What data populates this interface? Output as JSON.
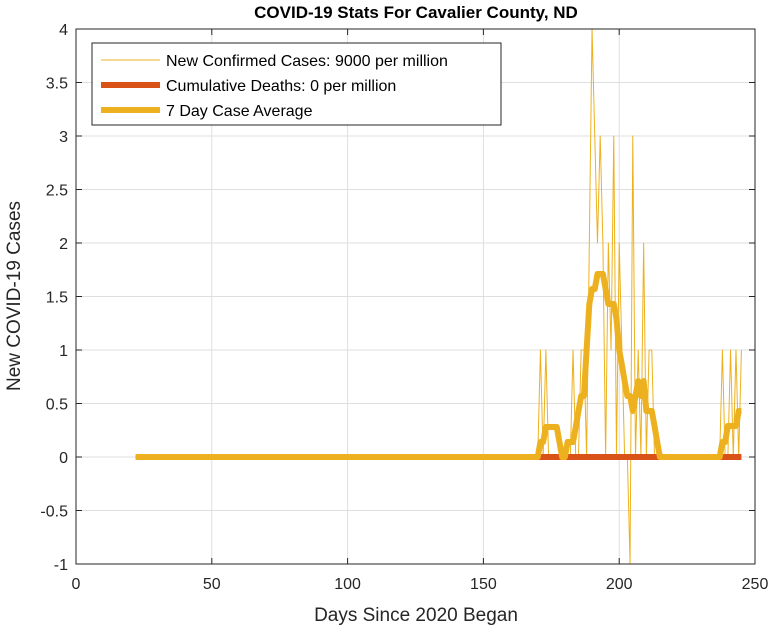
{
  "chart_data": {
    "type": "line",
    "title": "COVID-19 Stats For Cavalier County, ND",
    "xlabel": "Days Since 2020 Began",
    "ylabel": "New COVID-19 Cases",
    "xlim": [
      0,
      250
    ],
    "ylim": [
      -1,
      4
    ],
    "xticks": [
      0,
      50,
      100,
      150,
      200,
      250
    ],
    "yticks": [
      -1,
      -0.5,
      0,
      0.5,
      1,
      1.5,
      2,
      2.5,
      3,
      3.5,
      4
    ],
    "grid": true,
    "legend_position": "top-left",
    "series": [
      {
        "name": "New Confirmed Cases: 9000 per million",
        "color": "#EDB120",
        "line_width": "thin",
        "x": [
          22,
          170,
          171,
          172,
          173,
          174,
          175,
          176,
          177,
          178,
          179,
          180,
          181,
          182,
          183,
          184,
          185,
          186,
          187,
          188,
          189,
          190,
          191,
          192,
          193,
          194,
          195,
          196,
          197,
          198,
          199,
          200,
          201,
          202,
          203,
          204,
          205,
          206,
          207,
          208,
          209,
          210,
          211,
          212,
          213,
          214,
          215,
          216,
          217,
          218,
          219,
          236,
          237,
          238,
          239,
          240,
          241,
          242,
          243,
          244,
          245
        ],
        "y": [
          0,
          0,
          1,
          0,
          1,
          0,
          0,
          0,
          0,
          0,
          0,
          0,
          0,
          0,
          1,
          0,
          0,
          1,
          1,
          0,
          2,
          4,
          3,
          2,
          3,
          2,
          0,
          2,
          1,
          3,
          0,
          2,
          1,
          0,
          0,
          -1,
          3,
          0,
          1,
          0,
          2,
          0,
          1,
          1,
          0,
          0,
          0,
          0,
          0,
          0,
          0,
          0,
          0,
          1,
          0,
          0,
          1,
          0,
          1,
          0,
          1
        ]
      },
      {
        "name": "Cumulative Deaths: 0 per million",
        "color": "#D95319",
        "line_width": "thick",
        "x": [
          22,
          245
        ],
        "y": [
          0,
          0
        ]
      },
      {
        "name": "7 Day Case Average",
        "color": "#EDB120",
        "line_width": "thick",
        "x": [
          22,
          170,
          171,
          172,
          173,
          174,
          175,
          176,
          177,
          178,
          179,
          180,
          181,
          182,
          183,
          184,
          185,
          186,
          187,
          188,
          189,
          190,
          191,
          192,
          193,
          194,
          195,
          196,
          197,
          198,
          199,
          200,
          201,
          202,
          203,
          204,
          205,
          206,
          207,
          208,
          209,
          210,
          211,
          212,
          213,
          214,
          215,
          216,
          217,
          218,
          219,
          220,
          236,
          237,
          238,
          239,
          240,
          241,
          242,
          243,
          244,
          245
        ],
        "y": [
          0,
          0,
          0.14,
          0.14,
          0.28,
          0.28,
          0.28,
          0.28,
          0.28,
          0.14,
          0,
          0,
          0.14,
          0.14,
          0.14,
          0.28,
          0.43,
          0.57,
          0.57,
          1,
          1.43,
          1.57,
          1.57,
          1.71,
          1.71,
          1.71,
          1.57,
          1.43,
          1.43,
          1.43,
          1.29,
          1,
          0.86,
          0.71,
          0.57,
          0.57,
          0.43,
          0.57,
          0.71,
          0.57,
          0.71,
          0.43,
          0.43,
          0.43,
          0.29,
          0.14,
          0,
          0,
          0,
          0,
          0,
          0,
          0,
          0,
          0.14,
          0.14,
          0.29,
          0.29,
          0.29,
          0.29,
          0.43,
          0.43
        ]
      }
    ]
  }
}
